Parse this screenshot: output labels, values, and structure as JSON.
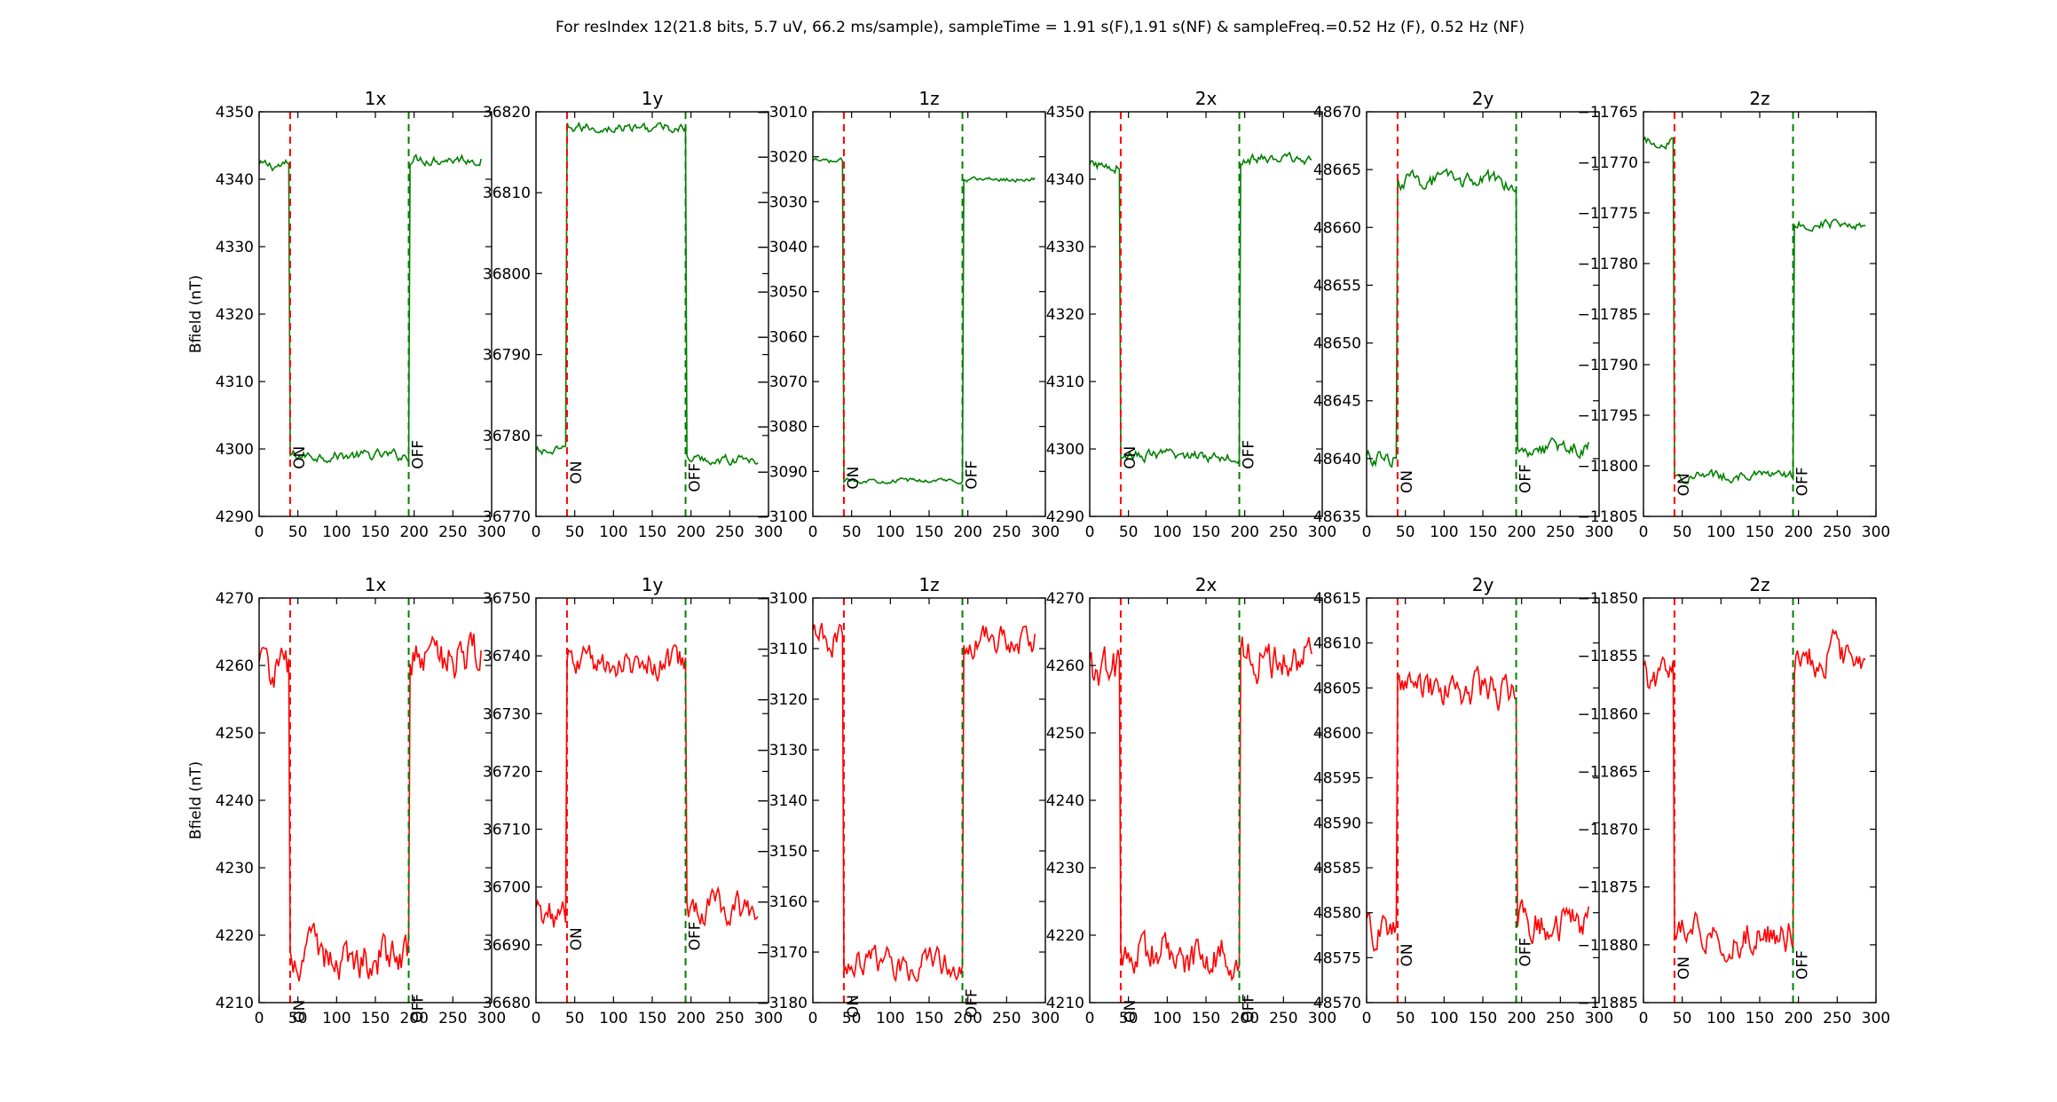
{
  "figure": {
    "suptitle": "For resIndex 12(21.8 bits, 5.7 uV, 66.2 ms/sample), sampleTime = 1.91 s(F),1.91 s(NF) & sampleFreq.=0.52 Hz (F), 0.52 Hz (NF)",
    "ylabel": "Bfield (nT)"
  },
  "chart_data": [
    {
      "type": "line",
      "row": 0,
      "title": "1x",
      "color": "#008000",
      "xlim": [
        0,
        300
      ],
      "xticks": [
        0,
        50,
        100,
        150,
        200,
        250,
        300
      ],
      "ylim": [
        4290,
        4350
      ],
      "yticks": [
        4290,
        4300,
        4310,
        4320,
        4330,
        4340,
        4350
      ],
      "on_x": 40,
      "off_x": 193,
      "on_label_y": 4297,
      "off_label_y": 4297,
      "before": 4342,
      "during": 4299,
      "after": 4343,
      "noise": 0.8,
      "ylabel": "Bfield (nT)"
    },
    {
      "type": "line",
      "row": 0,
      "title": "1y",
      "color": "#008000",
      "xlim": [
        0,
        300
      ],
      "xticks": [
        0,
        50,
        100,
        150,
        200,
        250,
        300
      ],
      "ylim": [
        36770,
        36820
      ],
      "yticks": [
        36770,
        36780,
        36790,
        36800,
        36810,
        36820
      ],
      "on_x": 40,
      "off_x": 193,
      "on_label_y": 36774,
      "off_label_y": 36773,
      "before": 36778,
      "during": 36818,
      "after": 36777,
      "noise": 0.6,
      "ylabel": ""
    },
    {
      "type": "line",
      "row": 0,
      "title": "1z",
      "color": "#008000",
      "xlim": [
        0,
        300
      ],
      "xticks": [
        0,
        50,
        100,
        150,
        200,
        250,
        300
      ],
      "ylim": [
        -3100,
        -3010
      ],
      "yticks": [
        -3100,
        -3090,
        -3080,
        -3070,
        -3060,
        -3050,
        -3040,
        -3030,
        -3020,
        -3010
      ],
      "on_x": 40,
      "off_x": 193,
      "on_label_y": -3094,
      "off_label_y": -3094,
      "before": -3021,
      "during": -3092,
      "after": -3025,
      "noise": 0.5,
      "ylabel": ""
    },
    {
      "type": "line",
      "row": 0,
      "title": "2x",
      "color": "#008000",
      "xlim": [
        0,
        300
      ],
      "xticks": [
        0,
        50,
        100,
        150,
        200,
        250,
        300
      ],
      "ylim": [
        4290,
        4350
      ],
      "yticks": [
        4290,
        4300,
        4310,
        4320,
        4330,
        4340,
        4350
      ],
      "on_x": 40,
      "off_x": 193,
      "on_label_y": 4297,
      "off_label_y": 4297,
      "before": 4342,
      "during": 4299,
      "after": 4343,
      "noise": 0.8,
      "ylabel": ""
    },
    {
      "type": "line",
      "row": 0,
      "title": "2y",
      "color": "#008000",
      "xlim": [
        0,
        300
      ],
      "xticks": [
        0,
        50,
        100,
        150,
        200,
        250,
        300
      ],
      "ylim": [
        48635,
        48670
      ],
      "yticks": [
        48635,
        48640,
        48645,
        48650,
        48655,
        48660,
        48665,
        48670
      ],
      "on_x": 40,
      "off_x": 193,
      "on_label_y": 48637,
      "off_label_y": 48637,
      "before": 48640,
      "during": 48664,
      "after": 48641,
      "noise": 0.7,
      "ylabel": ""
    },
    {
      "type": "line",
      "row": 0,
      "title": "2z",
      "color": "#008000",
      "xlim": [
        0,
        300
      ],
      "xticks": [
        0,
        50,
        100,
        150,
        200,
        250,
        300
      ],
      "ylim": [
        -11805,
        -11765
      ],
      "yticks": [
        -11805,
        -11800,
        -11795,
        -11790,
        -11785,
        -11780,
        -11775,
        -11770,
        -11765
      ],
      "on_x": 40,
      "off_x": 193,
      "on_label_y": -11803,
      "off_label_y": -11803,
      "before": -11768,
      "during": -11801,
      "after": -11776,
      "noise": 0.5,
      "ylabel": ""
    },
    {
      "type": "line",
      "row": 1,
      "title": "1x",
      "color": "#ff0000",
      "xlim": [
        0,
        300
      ],
      "xticks": [
        0,
        50,
        100,
        150,
        200,
        250,
        300
      ],
      "ylim": [
        4210,
        4270
      ],
      "yticks": [
        4210,
        4220,
        4230,
        4240,
        4250,
        4260,
        4270
      ],
      "on_x": 40,
      "off_x": 193,
      "on_label_y": 4207,
      "off_label_y": 4207,
      "before": 4259,
      "during": 4217,
      "after": 4261,
      "noise": 3.2,
      "ylabel": "Bfield (nT)"
    },
    {
      "type": "line",
      "row": 1,
      "title": "1y",
      "color": "#ff0000",
      "xlim": [
        0,
        300
      ],
      "xticks": [
        0,
        50,
        100,
        150,
        200,
        250,
        300
      ],
      "ylim": [
        36680,
        36750
      ],
      "yticks": [
        36680,
        36690,
        36700,
        36710,
        36720,
        36730,
        36740,
        36750
      ],
      "on_x": 40,
      "off_x": 193,
      "on_label_y": 36689,
      "off_label_y": 36689,
      "before": 36695,
      "during": 36739,
      "after": 36696,
      "noise": 2.8,
      "ylabel": ""
    },
    {
      "type": "line",
      "row": 1,
      "title": "1z",
      "color": "#ff0000",
      "xlim": [
        0,
        300
      ],
      "xticks": [
        0,
        50,
        100,
        150,
        200,
        250,
        300
      ],
      "ylim": [
        -3180,
        -3100
      ],
      "yticks": [
        -3180,
        -3170,
        -3160,
        -3150,
        -3140,
        -3130,
        -3120,
        -3110,
        -3100
      ],
      "on_x": 40,
      "off_x": 193,
      "on_label_y": -3183,
      "off_label_y": -3183,
      "before": -3108,
      "during": -3172,
      "after": -3108,
      "noise": 3.0,
      "ylabel": ""
    },
    {
      "type": "line",
      "row": 1,
      "title": "2x",
      "color": "#ff0000",
      "xlim": [
        0,
        300
      ],
      "xticks": [
        0,
        50,
        100,
        150,
        200,
        250,
        300
      ],
      "ylim": [
        4210,
        4270
      ],
      "yticks": [
        4210,
        4220,
        4230,
        4240,
        4250,
        4260,
        4270
      ],
      "on_x": 40,
      "off_x": 193,
      "on_label_y": 4207,
      "off_label_y": 4207,
      "before": 4259,
      "during": 4217,
      "after": 4261,
      "noise": 3.2,
      "ylabel": ""
    },
    {
      "type": "line",
      "row": 1,
      "title": "2y",
      "color": "#ff0000",
      "xlim": [
        0,
        300
      ],
      "xticks": [
        0,
        50,
        100,
        150,
        200,
        250,
        300
      ],
      "ylim": [
        48570,
        48615
      ],
      "yticks": [
        48570,
        48575,
        48580,
        48585,
        48590,
        48595,
        48600,
        48605,
        48610,
        48615
      ],
      "on_x": 40,
      "off_x": 193,
      "on_label_y": 48574,
      "off_label_y": 48574,
      "before": 48578,
      "during": 48605,
      "after": 48579,
      "noise": 2.0,
      "ylabel": ""
    },
    {
      "type": "line",
      "row": 1,
      "title": "2z",
      "color": "#ff0000",
      "xlim": [
        0,
        300
      ],
      "xticks": [
        0,
        50,
        100,
        150,
        200,
        250,
        300
      ],
      "ylim": [
        -11885,
        -11850
      ],
      "yticks": [
        -11885,
        -11880,
        -11875,
        -11870,
        -11865,
        -11860,
        -11855,
        -11850
      ],
      "on_x": 40,
      "off_x": 193,
      "on_label_y": -11883,
      "off_label_y": -11883,
      "before": -11857,
      "during": -11879,
      "after": -11855,
      "noise": 1.6,
      "ylabel": ""
    }
  ],
  "markers": {
    "on_label": "ON",
    "off_label": "OFF",
    "on_color": "#ff0000",
    "off_color": "#008000"
  }
}
